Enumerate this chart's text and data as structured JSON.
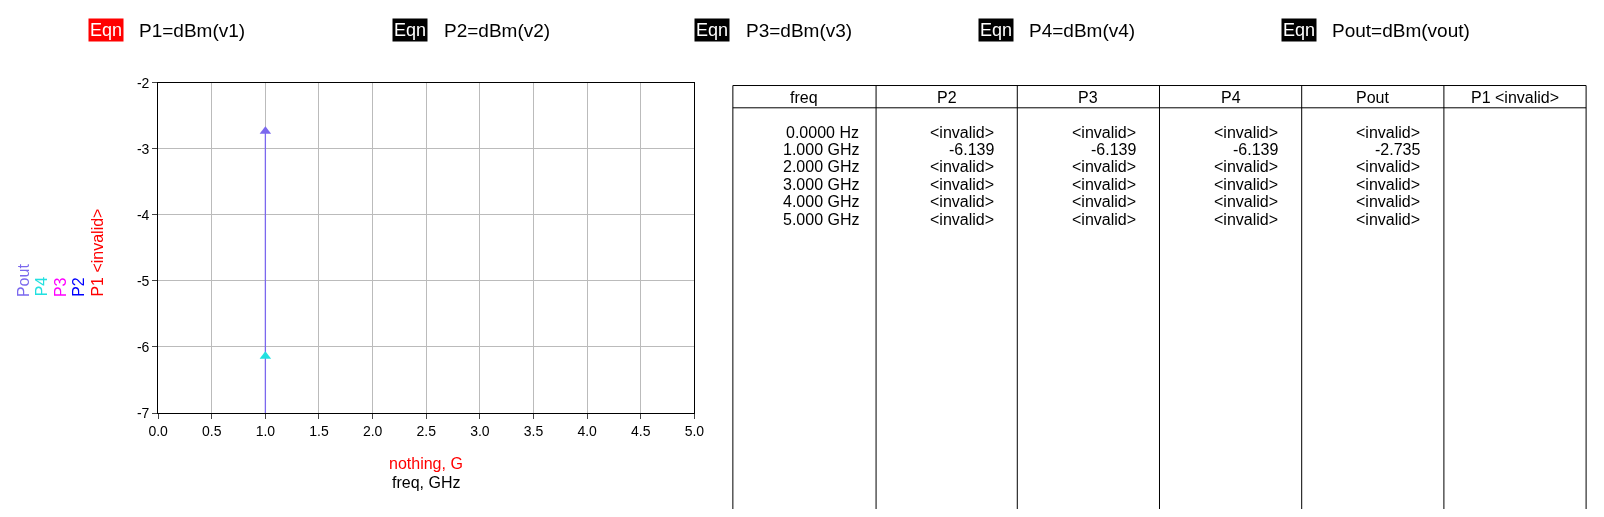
{
  "chart_data": [
    {
      "type": "other",
      "categories": [
        "Eqn",
        "Eqn",
        "Eqn",
        "Eqn",
        "Eqn"
      ],
      "colors": [
        "#ff0000",
        "#000000",
        "#000000",
        "#000000",
        "#000000"
      ],
      "annotations": [
        "P1=dBm(v1)",
        "P2=dBm(v2)",
        "P3=dBm(v3)",
        "P4=dBm(v4)",
        "Pout=dBm(vout)"
      ]
    },
    {
      "type": "scatter",
      "x": [
        1
      ],
      "xlabel": "freq, GHz",
      "annotations": [
        "nothing, G"
      ],
      "xlim": [
        0,
        5
      ],
      "xticks": [
        {
          "value": 0,
          "label": "0.0"
        },
        {
          "value": 0.5,
          "label": "0.5"
        },
        {
          "value": 1,
          "label": "1.0"
        },
        {
          "value": 1.5,
          "label": "1.5"
        },
        {
          "value": 2,
          "label": "2.0"
        },
        {
          "value": 2.5,
          "label": "2.5"
        },
        {
          "value": 3,
          "label": "3.0"
        },
        {
          "value": 3.5,
          "label": "3.5"
        },
        {
          "value": 4,
          "label": "4.0"
        },
        {
          "value": 4.5,
          "label": "4.5"
        },
        {
          "value": 5,
          "label": "5.0"
        }
      ],
      "ylim": [
        -7,
        -2
      ],
      "yticks": [
        -7,
        -6,
        -5,
        -4,
        -3,
        -2
      ],
      "grid": true,
      "legend": "left",
      "marker": "triangle",
      "series": [
        {
          "name": "Pout",
          "color": "#7b68ee",
          "values": [
            -2.735
          ],
          "errors": [
            [
              -7,
              -2.735
            ]
          ]
        },
        {
          "name": "P4",
          "color": "#22e0e0",
          "values": [
            -6.139
          ]
        },
        {
          "name": "P3",
          "color": "#ff00ff",
          "values": [
            null
          ]
        },
        {
          "name": "P2",
          "color": "#0000ff",
          "values": [
            null
          ]
        },
        {
          "name": "P1 <invalid>",
          "color": "#ff0000",
          "values": [
            null
          ]
        }
      ]
    },
    {
      "type": "other",
      "categories": [
        "freq",
        "P2",
        "P3",
        "P4",
        "Pout",
        "P1 <invalid>"
      ],
      "y_categories": [
        "0.0000 Hz",
        "1.000 GHz",
        "2.000 GHz",
        "3.000 GHz",
        "4.000 GHz",
        "5.000 GHz"
      ],
      "cell_labels": [
        [
          "<invalid>",
          "<invalid>",
          "<invalid>",
          "<invalid>",
          null
        ],
        [
          "-6.139",
          "-6.139",
          "-6.139",
          "-2.735",
          null
        ],
        [
          "<invalid>",
          "<invalid>",
          "<invalid>",
          "<invalid>",
          null
        ],
        [
          "<invalid>",
          "<invalid>",
          "<invalid>",
          "<invalid>",
          null
        ],
        [
          "<invalid>",
          "<invalid>",
          "<invalid>",
          "<invalid>",
          null
        ],
        [
          "<invalid>",
          "<invalid>",
          "<invalid>",
          "<invalid>",
          null
        ]
      ]
    }
  ]
}
